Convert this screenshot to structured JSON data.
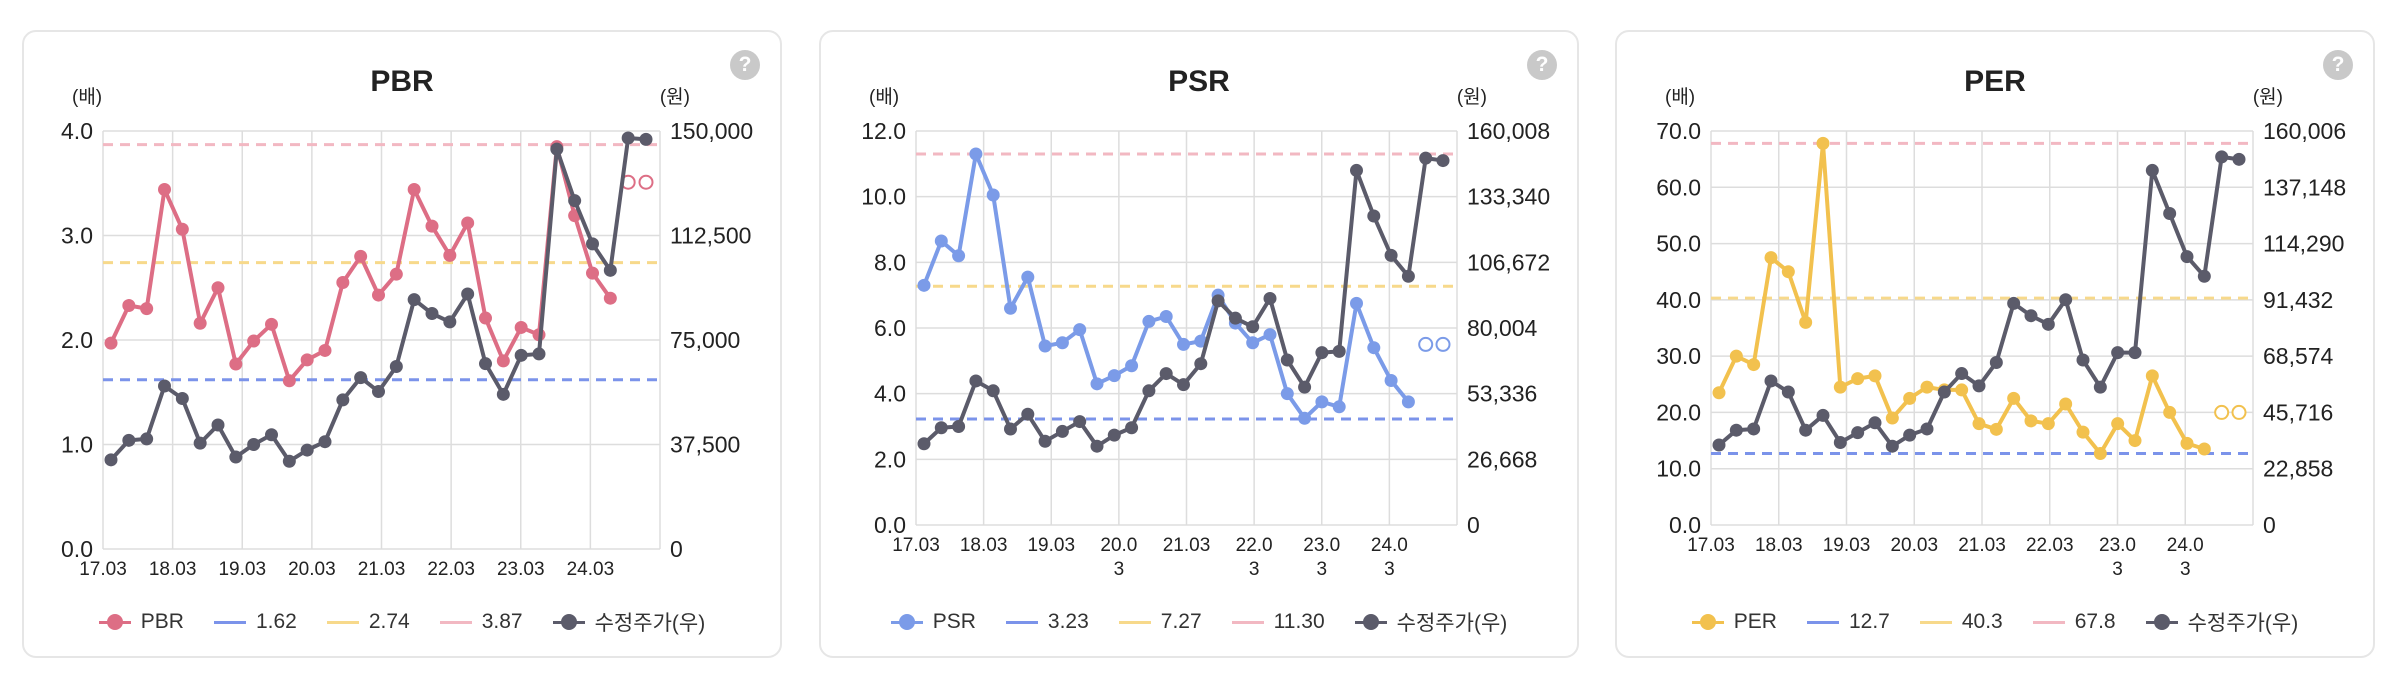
{
  "colors": {
    "gridline": "#dddddd",
    "axis_text": "#222222",
    "stock_price": "#5b5b6a",
    "mean_line": "#7b93ea",
    "low_band": "#f7d98b",
    "high_band": "#f2b8c2"
  },
  "ui": {
    "help_icon": "question-icon",
    "help_label": "?"
  },
  "chart_data": [
    {
      "type": "line",
      "title": "PBR",
      "left_unit": "(배)",
      "right_unit": "(원)",
      "metric_color": "#dd6e85",
      "ylim": [
        0,
        4
      ],
      "yticks": [
        "0.0",
        "1.0",
        "2.0",
        "3.0",
        "4.0"
      ],
      "ylim_right": [
        0,
        150000
      ],
      "yticks_right": [
        "0",
        "37,500",
        "75,000",
        "112,500",
        "150,000"
      ],
      "xtick_labels": [
        [
          "17.03"
        ],
        [
          "18.03"
        ],
        [
          "19.03"
        ],
        [
          "20.03"
        ],
        [
          "21.03"
        ],
        [
          "22.03"
        ],
        [
          "23.03"
        ],
        [
          "24.03"
        ]
      ],
      "series": [
        {
          "name": "PBR",
          "values": [
            1.97,
            2.33,
            2.3,
            3.44,
            3.06,
            2.16,
            2.5,
            1.77,
            1.99,
            2.15,
            1.61,
            1.81,
            1.9,
            2.55,
            2.8,
            2.43,
            2.63,
            3.44,
            3.09,
            2.81,
            3.12,
            2.21,
            1.8,
            2.12,
            2.05,
            3.85,
            3.19,
            2.64,
            2.4,
            3.51,
            3.51
          ]
        },
        {
          "name": "수정주가(우)",
          "values": [
            32000,
            39000,
            39500,
            58500,
            54000,
            38000,
            44500,
            33000,
            37500,
            41000,
            31500,
            35500,
            38500,
            53500,
            61500,
            56500,
            65500,
            89500,
            84500,
            81500,
            91500,
            66500,
            55500,
            69500,
            70000,
            143500,
            125000,
            109500,
            100000,
            147500,
            147000
          ]
        }
      ],
      "reference_lines": [
        {
          "name": "1.62",
          "value": 1.62,
          "color": "#7b93ea"
        },
        {
          "name": "2.74",
          "value": 2.74,
          "color": "#f7d98b"
        },
        {
          "name": "3.87",
          "value": 3.87,
          "color": "#f2b8c2"
        }
      ]
    },
    {
      "type": "line",
      "title": "PSR",
      "left_unit": "(배)",
      "right_unit": "(원)",
      "metric_color": "#7b9be8",
      "ylim": [
        0,
        12
      ],
      "yticks": [
        "0.0",
        "2.0",
        "4.0",
        "6.0",
        "8.0",
        "10.0",
        "12.0"
      ],
      "ylim_right": [
        0,
        160008
      ],
      "yticks_right": [
        "0",
        "26,668",
        "53,336",
        "80,004",
        "106,672",
        "133,340",
        "160,008"
      ],
      "xtick_labels": [
        [
          "17.03"
        ],
        [
          "18.03"
        ],
        [
          "19.03"
        ],
        [
          "20.0",
          "3"
        ],
        [
          "21.03"
        ],
        [
          "22.0",
          "3"
        ],
        [
          "23.0",
          "3"
        ],
        [
          "24.0",
          "3"
        ]
      ],
      "series": [
        {
          "name": "PSR",
          "values": [
            7.3,
            8.65,
            8.2,
            11.3,
            10.05,
            6.6,
            7.55,
            5.45,
            5.55,
            5.95,
            4.3,
            4.55,
            4.85,
            6.2,
            6.35,
            5.5,
            5.6,
            7.0,
            6.15,
            5.55,
            5.8,
            4.0,
            3.25,
            3.75,
            3.6,
            6.75,
            5.4,
            4.4,
            3.75,
            5.5,
            5.5
          ]
        },
        {
          "name": "수정주가(우)",
          "values": [
            33000,
            39500,
            40000,
            58500,
            54500,
            39000,
            45000,
            34000,
            38000,
            42000,
            32000,
            36500,
            39500,
            54500,
            61500,
            57000,
            65500,
            91000,
            84000,
            80500,
            92000,
            67000,
            56000,
            70000,
            70500,
            144000,
            125500,
            109500,
            101000,
            149000,
            148000
          ]
        }
      ],
      "reference_lines": [
        {
          "name": "3.23",
          "value": 3.23,
          "color": "#7b93ea"
        },
        {
          "name": "7.27",
          "value": 7.27,
          "color": "#f7d98b"
        },
        {
          "name": "11.30",
          "value": 11.3,
          "color": "#f2b8c2"
        }
      ]
    },
    {
      "type": "line",
      "title": "PER",
      "left_unit": "(배)",
      "right_unit": "(원)",
      "metric_color": "#f2c14e",
      "ylim": [
        0,
        70
      ],
      "yticks": [
        "0.0",
        "10.0",
        "20.0",
        "30.0",
        "40.0",
        "50.0",
        "60.0",
        "70.0"
      ],
      "ylim_right": [
        0,
        160006
      ],
      "yticks_right": [
        "0",
        "22,858",
        "45,716",
        "68,574",
        "91,432",
        "114,290",
        "137,148",
        "160,006"
      ],
      "xtick_labels": [
        [
          "17.03"
        ],
        [
          "18.03"
        ],
        [
          "19.03"
        ],
        [
          "20.03"
        ],
        [
          "21.03"
        ],
        [
          "22.03"
        ],
        [
          "23.0",
          "3"
        ],
        [
          "24.0",
          "3"
        ]
      ],
      "series": [
        {
          "name": "PER",
          "values": [
            23.5,
            30.0,
            28.5,
            47.5,
            45.0,
            36.0,
            67.8,
            24.5,
            26.0,
            26.5,
            19.0,
            22.5,
            24.5,
            24.0,
            24.0,
            18.0,
            17.0,
            22.5,
            18.5,
            18.0,
            21.5,
            16.5,
            12.7,
            18.0,
            15.0,
            26.5,
            20.0,
            14.5,
            13.5,
            20.0,
            20.0
          ]
        },
        {
          "name": "수정주가(우)",
          "values": [
            32500,
            38500,
            39000,
            58500,
            54000,
            38500,
            44500,
            33500,
            37500,
            41500,
            32000,
            36500,
            39000,
            54000,
            61500,
            56500,
            66000,
            90000,
            85000,
            81500,
            91500,
            67000,
            56000,
            70000,
            70000,
            144000,
            126500,
            109000,
            101000,
            149500,
            148500
          ]
        }
      ],
      "reference_lines": [
        {
          "name": "12.7",
          "value": 12.7,
          "color": "#7b93ea"
        },
        {
          "name": "40.3",
          "value": 40.3,
          "color": "#f7d98b"
        },
        {
          "name": "67.8",
          "value": 67.8,
          "color": "#f2b8c2"
        }
      ]
    }
  ]
}
